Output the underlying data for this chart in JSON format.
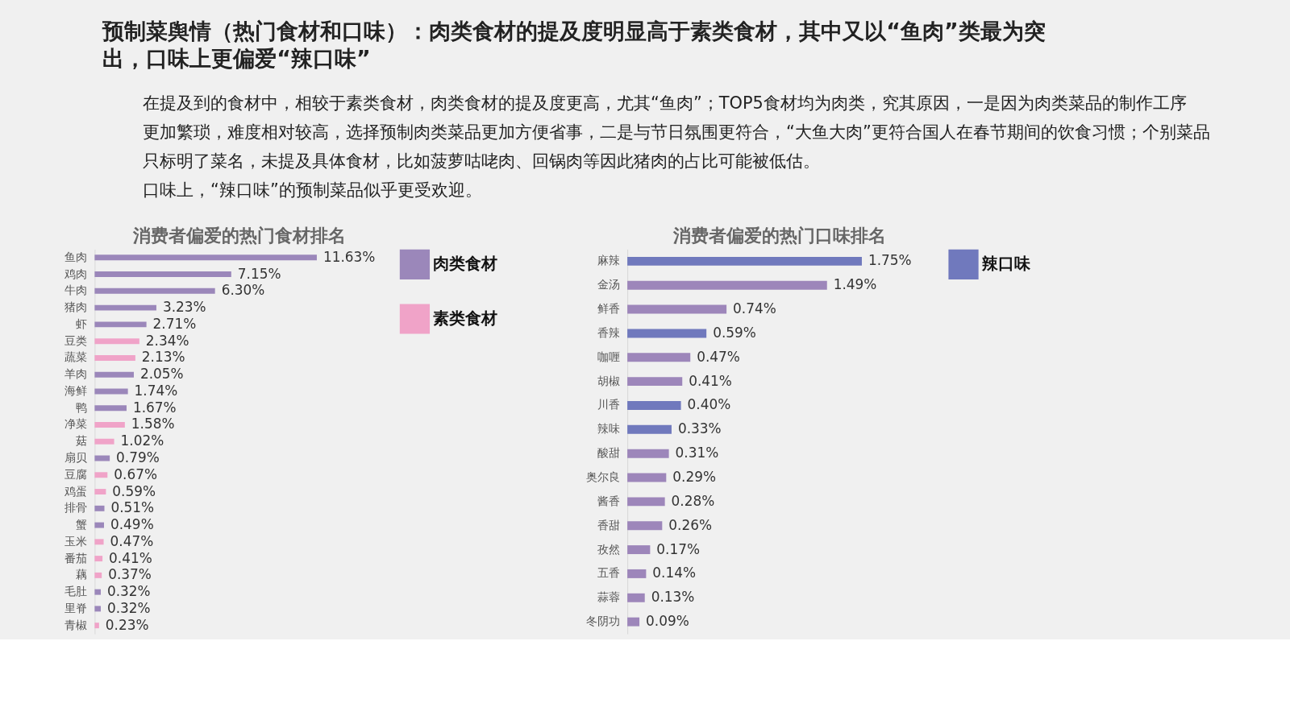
{
  "chart_data": [
    {
      "type": "bar",
      "orientation": "horizontal",
      "legend": "right",
      "title": "预制菜舆情（热门食材和口味）：肉类食材的提及度明显高于素类食材，其中又以“鱼肉”类最为突出，口味上更偏爱“辣口味”",
      "subtitle": "消费者偏爱的热门食材排名",
      "annotations": [
        "在提及到的食材中，相较于素类食材，肉类食材的提及度更高，尤其“鱼肉”；TOP5食材均为肉类，究其原因，一是因为肉类菜品的制作工序更加繁琐，难度相对较高，选择预制肉类菜品更加方便省事，二是与节日氛围更符合，“大鱼大肉”更符合国人在春节期间的饮食习惯；个别菜品只标明了菜名，未提及具体食材，比如菠萝咕咾肉、回锅肉等因此猪肉的占比可能被低估。",
        "口味上，“辣口味”的预制菜品似乎更受欢迎。"
      ],
      "categories": [
        "鱼肉",
        "鸡肉",
        "牛肉",
        "猪肉",
        "虾",
        "豆类",
        "蔬菜",
        "羊肉",
        "海鲜",
        "鸭",
        "净菜",
        "菇",
        "扇贝",
        "豆腐",
        "鸡蛋",
        "排骨",
        "蟹",
        "玉米",
        "番茄",
        "藕",
        "毛肚",
        "里脊",
        "青椒"
      ],
      "series": [
        {
          "name": "肉类食材",
          "color": "#9b87ba",
          "values": [
            11.63,
            7.15,
            6.3,
            3.23,
            2.71,
            null,
            null,
            2.05,
            1.74,
            1.67,
            null,
            null,
            0.79,
            null,
            null,
            0.51,
            0.49,
            null,
            null,
            null,
            0.32,
            0.32,
            null
          ],
          "value_labels": [
            "11.63%",
            "7.15%",
            "6.30%",
            "3.23%",
            "2.71%",
            null,
            null,
            "2.05%",
            "1.74%",
            "1.67%",
            null,
            null,
            "0.79%",
            null,
            null,
            "0.51%",
            "0.49%",
            null,
            null,
            null,
            "0.32%",
            "0.32%",
            null
          ]
        },
        {
          "name": "素类食材",
          "color": "#f0a3c8",
          "values": [
            null,
            null,
            null,
            null,
            null,
            2.34,
            2.13,
            null,
            null,
            null,
            1.58,
            1.02,
            null,
            0.67,
            0.59,
            null,
            null,
            0.47,
            0.41,
            0.37,
            null,
            null,
            0.23
          ],
          "value_labels": [
            null,
            null,
            null,
            null,
            null,
            "2.34%",
            "2.13%",
            null,
            null,
            null,
            "1.58%",
            "1.02%",
            null,
            "0.67%",
            "0.59%",
            null,
            null,
            "0.47%",
            "0.41%",
            "0.37%",
            null,
            null,
            "0.23%"
          ]
        }
      ]
    },
    {
      "type": "bar",
      "orientation": "horizontal",
      "legend": "right",
      "title": "消费者偏爱的热门口味排名",
      "categories": [
        "麻辣",
        "金汤",
        "鲜香",
        "香辣",
        "咖喱",
        "胡椒",
        "川香",
        "辣味",
        "酸甜",
        "奥尔良",
        "酱香",
        "香甜",
        "孜然",
        "五香",
        "蒜蓉",
        "冬阴功"
      ],
      "series": [
        {
          "name": "辣口味",
          "color": "#7079bd",
          "values": [
            1.75,
            null,
            null,
            0.59,
            null,
            null,
            0.4,
            0.33,
            null,
            null,
            null,
            null,
            null,
            null,
            null,
            null
          ],
          "value_labels": [
            "1.75%",
            null,
            null,
            "0.59%",
            null,
            null,
            "0.40%",
            "0.33%",
            null,
            null,
            null,
            null,
            null,
            null,
            null,
            null
          ]
        },
        {
          "color": "#9d86ba",
          "values": [
            null,
            1.49,
            0.74,
            null,
            0.47,
            0.41,
            null,
            null,
            0.31,
            0.29,
            0.28,
            0.26,
            0.17,
            0.14,
            0.13,
            0.09
          ],
          "value_labels": [
            null,
            "1.49%",
            "0.74%",
            null,
            "0.47%",
            "0.41%",
            null,
            null,
            "0.31%",
            "0.29%",
            "0.28%",
            "0.26%",
            "0.17%",
            "0.14%",
            "0.13%",
            "0.09%"
          ]
        }
      ]
    }
  ]
}
